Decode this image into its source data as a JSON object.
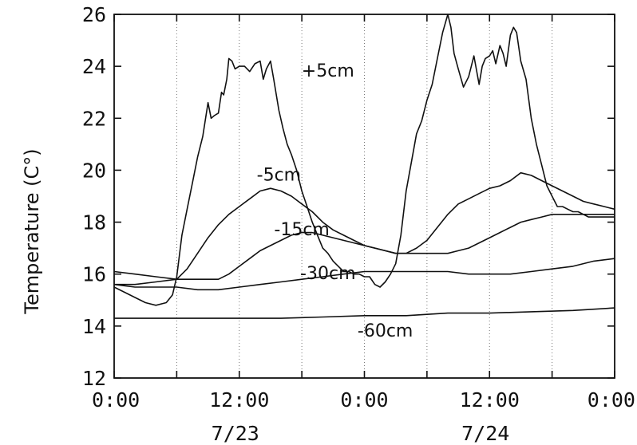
{
  "chart_data": {
    "type": "line",
    "title": "",
    "xlabel": "",
    "ylabel": "Temperature  (C°)",
    "x_ticks": [
      "0:00",
      "12:00",
      "0:00",
      "12:00",
      "0:00"
    ],
    "x_tick_hours": [
      0,
      12,
      24,
      36,
      48
    ],
    "date_labels": [
      {
        "text": "7/23",
        "hour": 12
      },
      {
        "text": "7/24",
        "hour": 36
      }
    ],
    "xlim": [
      0,
      48
    ],
    "ylim": [
      12,
      26
    ],
    "y_ticks": [
      12,
      14,
      16,
      18,
      20,
      22,
      24,
      26
    ],
    "grid": {
      "vertical_every_hours": 6,
      "horizontal": false
    },
    "legend": "inline labels",
    "series": [
      {
        "name": "+5cm",
        "label_at": {
          "hour": 20.5,
          "value": 23.6
        },
        "x": [
          0,
          1,
          2,
          3,
          4,
          5,
          5.6,
          6,
          6.5,
          7,
          7.5,
          8,
          8.5,
          9,
          9.3,
          9.6,
          10,
          10.3,
          10.5,
          10.8,
          11,
          11.3,
          11.6,
          12,
          12.5,
          13,
          13.5,
          14,
          14.3,
          14.6,
          15,
          15.3,
          15.8,
          16.2,
          16.6,
          17,
          17.5,
          18,
          18.5,
          19,
          19.5,
          20,
          20.5,
          21,
          21.5,
          22,
          22.5,
          23,
          23.5,
          24,
          24.5,
          25,
          25.5,
          26,
          26.5,
          27,
          27.5,
          28,
          28.5,
          29,
          29.5,
          30,
          30.5,
          31,
          31.5,
          32,
          32.3,
          32.6,
          33,
          33.5,
          34,
          34.5,
          35,
          35.3,
          35.6,
          36,
          36.3,
          36.6,
          37,
          37.3,
          37.6,
          38,
          38.3,
          38.6,
          39,
          39.5,
          40,
          40.5,
          41,
          41.5,
          42,
          42.5,
          43,
          43.5,
          44,
          44.5,
          45,
          45.5,
          46,
          46.5,
          47,
          48
        ],
        "values": [
          15.5,
          15.3,
          15.1,
          14.9,
          14.8,
          14.9,
          15.2,
          15.9,
          17.5,
          18.5,
          19.5,
          20.5,
          21.3,
          22.6,
          22.0,
          22.1,
          22.2,
          23.0,
          22.9,
          23.5,
          24.3,
          24.2,
          23.9,
          24.0,
          24.0,
          23.8,
          24.1,
          24.2,
          23.5,
          23.9,
          24.2,
          23.5,
          22.3,
          21.6,
          21.0,
          20.6,
          20.0,
          19.2,
          18.6,
          18.0,
          17.5,
          17.0,
          16.8,
          16.5,
          16.3,
          16.1,
          16.1,
          16.0,
          16.0,
          15.9,
          15.9,
          15.6,
          15.5,
          15.7,
          16.0,
          16.4,
          17.5,
          19.2,
          20.3,
          21.4,
          21.9,
          22.7,
          23.3,
          24.3,
          25.3,
          26.0,
          25.5,
          24.5,
          23.9,
          23.2,
          23.6,
          24.4,
          23.3,
          24.0,
          24.3,
          24.4,
          24.6,
          24.1,
          24.8,
          24.5,
          24.0,
          25.2,
          25.5,
          25.3,
          24.2,
          23.5,
          22.0,
          21.0,
          20.2,
          19.4,
          19.0,
          18.6,
          18.6,
          18.5,
          18.4,
          18.4,
          18.3,
          18.2,
          18.2,
          18.2,
          18.2,
          18.2
        ]
      },
      {
        "name": "-5cm",
        "label_at": {
          "hour": 15.8,
          "value": 19.6
        },
        "x": [
          0,
          2,
          4,
          6,
          7,
          8,
          9,
          10,
          11,
          12,
          13,
          14,
          15,
          16,
          17,
          18,
          19,
          20,
          21,
          22,
          23,
          24,
          25,
          26,
          27,
          28,
          29,
          30,
          31,
          32,
          33,
          34,
          35,
          36,
          37,
          38,
          39,
          40,
          41,
          42,
          43,
          44,
          45,
          46,
          47,
          48
        ],
        "values": [
          15.6,
          15.6,
          15.7,
          15.8,
          16.2,
          16.8,
          17.4,
          17.9,
          18.3,
          18.6,
          18.9,
          19.2,
          19.3,
          19.2,
          19.0,
          18.7,
          18.4,
          18.0,
          17.7,
          17.5,
          17.3,
          17.1,
          17.0,
          16.9,
          16.8,
          16.8,
          17.0,
          17.3,
          17.8,
          18.3,
          18.7,
          18.9,
          19.1,
          19.3,
          19.4,
          19.6,
          19.9,
          19.8,
          19.6,
          19.4,
          19.2,
          19.0,
          18.8,
          18.7,
          18.6,
          18.5
        ]
      },
      {
        "name": "-15cm",
        "label_at": {
          "hour": 18.0,
          "value": 17.5
        },
        "x": [
          0,
          2,
          4,
          6,
          8,
          10,
          11,
          12,
          13,
          14,
          15,
          16,
          17,
          18,
          19,
          20,
          21,
          22,
          23,
          24,
          25,
          26,
          27,
          28,
          29,
          30,
          31,
          32,
          33,
          34,
          35,
          36,
          37,
          38,
          39,
          40,
          41,
          42,
          43,
          44,
          45,
          46,
          47,
          48
        ],
        "values": [
          16.1,
          16.0,
          15.9,
          15.8,
          15.8,
          15.8,
          16.0,
          16.3,
          16.6,
          16.9,
          17.1,
          17.3,
          17.5,
          17.6,
          17.6,
          17.5,
          17.4,
          17.3,
          17.2,
          17.1,
          17.0,
          16.9,
          16.8,
          16.8,
          16.8,
          16.8,
          16.8,
          16.8,
          16.9,
          17.0,
          17.2,
          17.4,
          17.6,
          17.8,
          18.0,
          18.1,
          18.2,
          18.3,
          18.3,
          18.3,
          18.3,
          18.3,
          18.3,
          18.3
        ]
      },
      {
        "name": "-30cm",
        "label_at": {
          "hour": 20.5,
          "value": 15.8
        },
        "x": [
          0,
          2,
          4,
          6,
          8,
          10,
          12,
          14,
          16,
          18,
          20,
          22,
          24,
          26,
          28,
          30,
          32,
          34,
          36,
          38,
          40,
          42,
          44,
          46,
          48
        ],
        "values": [
          15.6,
          15.5,
          15.5,
          15.5,
          15.4,
          15.4,
          15.5,
          15.6,
          15.7,
          15.8,
          15.9,
          16.0,
          16.1,
          16.1,
          16.1,
          16.1,
          16.1,
          16.0,
          16.0,
          16.0,
          16.1,
          16.2,
          16.3,
          16.5,
          16.6
        ]
      },
      {
        "name": "-60cm",
        "label_at": {
          "hour": 26.0,
          "value": 13.6
        },
        "x": [
          0,
          4,
          8,
          12,
          16,
          20,
          24,
          28,
          32,
          36,
          40,
          44,
          48
        ],
        "values": [
          14.3,
          14.3,
          14.3,
          14.3,
          14.3,
          14.35,
          14.4,
          14.4,
          14.5,
          14.5,
          14.55,
          14.6,
          14.7
        ]
      }
    ]
  }
}
